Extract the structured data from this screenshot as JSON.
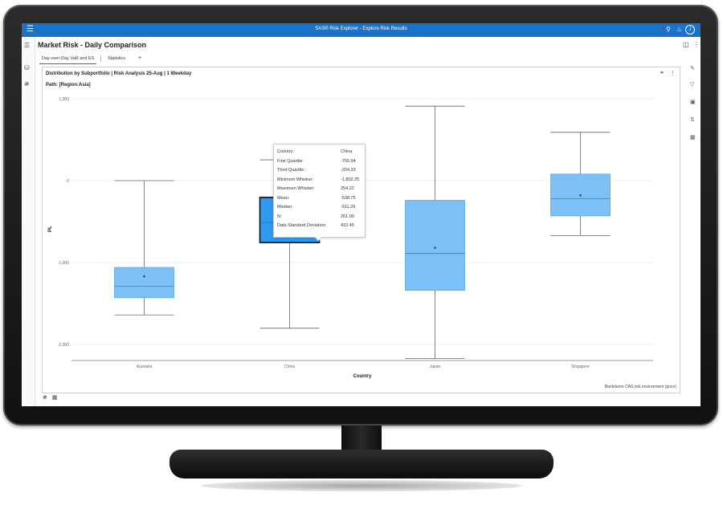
{
  "app": {
    "title": "SAS® Risk Explorer - Explore Risk Results",
    "user_initial": "J"
  },
  "page": {
    "title": "Market Risk - Daily Comparison"
  },
  "tabs": [
    {
      "label": "Day-over-Day VaR and ES",
      "active": true
    },
    {
      "label": "Statistics",
      "active": false
    }
  ],
  "add_tab_label": "+",
  "report": {
    "title": "Distribution by Subportfolio  | Risk Analysis 25-Aug | 1 Weekday",
    "path": "Path:  [Region:Asia]",
    "footer": "Bankdemo CAS risk environment (price)"
  },
  "tooltip": {
    "rows": [
      {
        "k": "Country:",
        "v": "China"
      },
      {
        "k": "First Quartile:",
        "v": "-755.94"
      },
      {
        "k": "Third Quartile:",
        "v": "-204.33"
      },
      {
        "k": "Minimum Whisker:",
        "v": "-1,802.25"
      },
      {
        "k": "Maximum Whisker:",
        "v": "254.22"
      },
      {
        "k": "Mean:",
        "v": "-538.75"
      },
      {
        "k": "Median:",
        "v": "-511.29"
      },
      {
        "k": "N:",
        "v": "261.00"
      },
      {
        "k": "Data Standard Deviation:",
        "v": "433.45"
      }
    ]
  },
  "icons": {
    "menu": "hamburger-icon",
    "search": "search-icon",
    "bell": "bell-icon",
    "more": "more-vert-icon",
    "save": "save-icon",
    "data": "database-icon",
    "chart": "line-chart-icon",
    "table": "table-icon",
    "link": "paperclip-icon",
    "filter": "filter-icon"
  },
  "colors": {
    "brand": "#1b73c9",
    "box": "#7cc0f5",
    "box_selected": "#2f9af0",
    "box_stroke": "#5aa9e6"
  },
  "chart_data": {
    "type": "box",
    "xlabel": "Country",
    "ylabel": "PL",
    "ylim": [
      -2200,
      1000
    ],
    "yticks": [
      1000,
      0,
      -1000,
      -2000
    ],
    "ytick_labels": [
      "1,000",
      "0",
      "-1,000",
      "-2,000"
    ],
    "categories": [
      "Australia",
      "China",
      "Japan",
      "Singapore"
    ],
    "boxes": [
      {
        "name": "Australia",
        "min": -1640,
        "q1": -1430,
        "median": -1290,
        "q3": -1060,
        "max": 0,
        "mean": -1170
      },
      {
        "name": "China",
        "min": -1802.25,
        "q1": -755.94,
        "median": -511.29,
        "q3": -204.33,
        "max": 254.22,
        "mean": -538.75,
        "selected": true
      },
      {
        "name": "Japan",
        "min": -2170,
        "q1": -1340,
        "median": -890,
        "q3": -240,
        "max": 910,
        "mean": -820
      },
      {
        "name": "Singapore",
        "min": -670,
        "q1": -430,
        "median": -220,
        "q3": 80,
        "max": 590,
        "mean": -180
      }
    ],
    "grid": true,
    "legend": "none"
  }
}
